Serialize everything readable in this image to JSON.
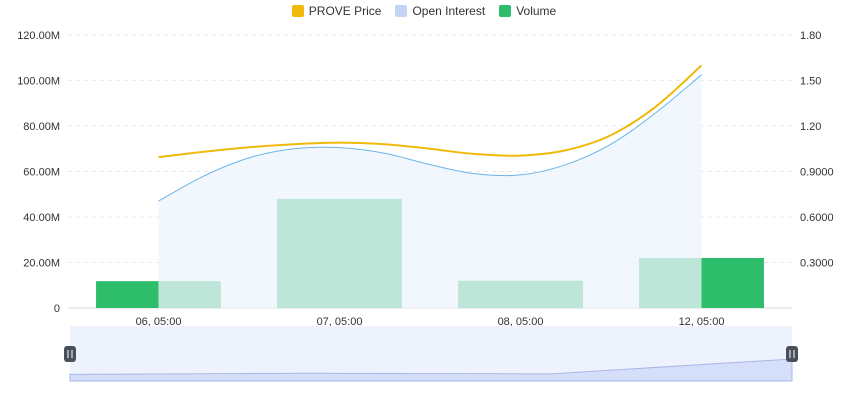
{
  "legend": [
    {
      "label": "PROVE Price",
      "color": "#f0b90b"
    },
    {
      "label": "Open Interest",
      "color": "#c5d3f7"
    },
    {
      "label": "Volume",
      "color": "#2ebd6b"
    }
  ],
  "chart_data": {
    "type": "bar",
    "categories": [
      "06, 05:00",
      "07, 05:00",
      "08, 05:00",
      "12, 05:00"
    ],
    "left_axis": {
      "ticks": [
        "0",
        "20.00M",
        "40.00M",
        "60.00M",
        "80.00M",
        "100.00M",
        "120.00M"
      ],
      "ylim": [
        0,
        120000000
      ]
    },
    "right_axis": {
      "ticks": [
        "0.3000",
        "0.6000",
        "0.9000",
        "1.20",
        "1.50",
        "1.80"
      ],
      "ylim": [
        0,
        1.8
      ]
    },
    "grid": true,
    "legend_position": "top-center",
    "series": [
      {
        "name": "Volume",
        "type": "bar",
        "axis": "left",
        "color": "#2ebd6b",
        "values": [
          11800000,
          48000000,
          12000000,
          22000000
        ]
      },
      {
        "name": "Open Interest",
        "type": "area",
        "axis": "left",
        "color": "#6ab5e8",
        "fill": "#eef4fd",
        "x": [
          0,
          0.25,
          0.5,
          0.75,
          1.0,
          1.25,
          1.5,
          1.75,
          2.0,
          2.25,
          2.5,
          2.75,
          3.0
        ],
        "values": [
          47000000,
          58000000,
          66000000,
          70000000,
          70500000,
          68000000,
          63000000,
          59000000,
          58500000,
          63000000,
          72000000,
          86000000,
          102500000
        ]
      },
      {
        "name": "PROVE Price",
        "type": "line",
        "axis": "right",
        "color": "#f0b90b",
        "x": [
          0,
          0.25,
          0.5,
          0.75,
          1.0,
          1.25,
          1.5,
          1.75,
          2.0,
          2.25,
          2.5,
          2.75,
          3.0
        ],
        "values": [
          0.995,
          1.03,
          1.06,
          1.08,
          1.09,
          1.08,
          1.05,
          1.015,
          1.005,
          1.04,
          1.14,
          1.33,
          1.6
        ]
      }
    ],
    "navigator": {
      "values": [
        0.12,
        0.14,
        0.13,
        0.4
      ]
    }
  }
}
